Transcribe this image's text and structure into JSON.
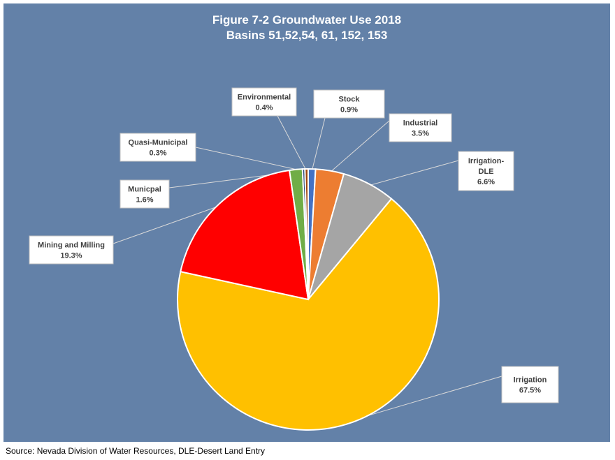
{
  "chart_data": {
    "type": "pie",
    "title": "Figure 7-2 Groundwater Use 2018",
    "subtitle": "Basins 51,52,54, 61, 152, 153",
    "slices": [
      {
        "name": "Stock",
        "label_lines": [
          "Stock"
        ],
        "value": 0.9,
        "display": "0.9%",
        "color": "#4472c4"
      },
      {
        "name": "Industrial",
        "label_lines": [
          "Industrial"
        ],
        "value": 3.5,
        "display": "3.5%",
        "color": "#ed7d31"
      },
      {
        "name": "Irrigation-DLE",
        "label_lines": [
          "Irrigation-",
          "DLE"
        ],
        "value": 6.6,
        "display": "6.6%",
        "color": "#a5a5a5"
      },
      {
        "name": "Irrigation",
        "label_lines": [
          "Irrigation"
        ],
        "value": 67.5,
        "display": "67.5%",
        "color": "#ffc000"
      },
      {
        "name": "Mining and Milling",
        "label_lines": [
          "Mining and Milling"
        ],
        "value": 19.3,
        "display": "19.3%",
        "color": "#ff0000"
      },
      {
        "name": "Municpal",
        "label_lines": [
          "Municpal"
        ],
        "value": 1.6,
        "display": "1.6%",
        "color": "#70ad47"
      },
      {
        "name": "Quasi-Municipal",
        "label_lines": [
          "Quasi-Municipal"
        ],
        "value": 0.3,
        "display": "0.3%",
        "color": "#264478"
      },
      {
        "name": "Environmental",
        "label_lines": [
          "Environmental"
        ],
        "value": 0.4,
        "display": "0.4%",
        "color": "#9e480e"
      }
    ],
    "legend": "none"
  },
  "footer": {
    "source": "Source: Nevada Division of Water Resources, DLE-Desert Land Entry"
  }
}
